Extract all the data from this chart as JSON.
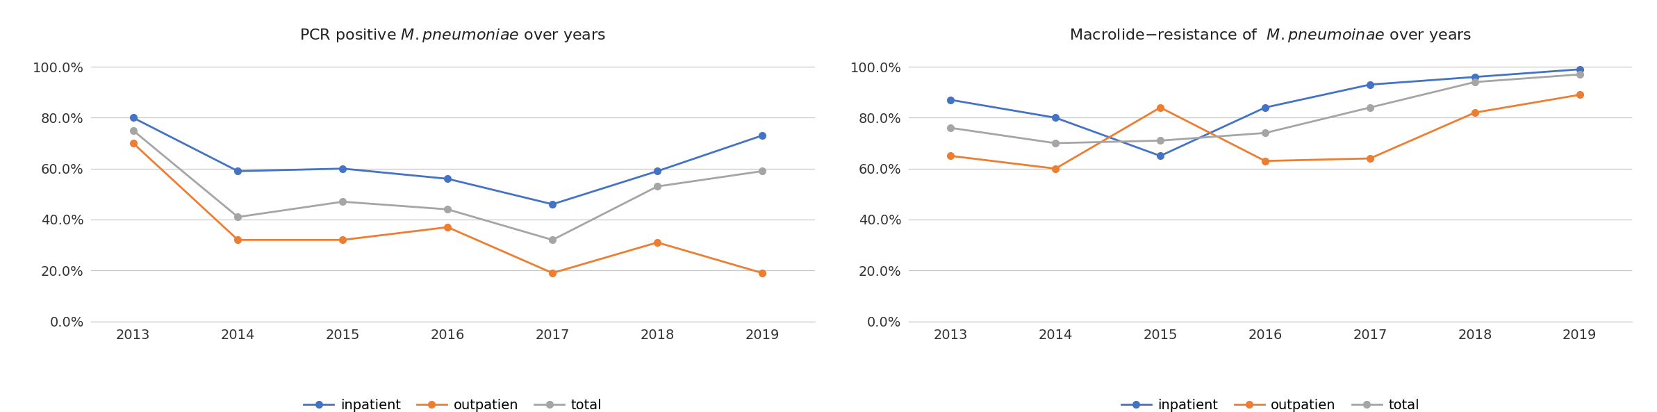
{
  "years": [
    2013,
    2014,
    2015,
    2016,
    2017,
    2018,
    2019
  ],
  "chart1": {
    "title": "PCR positive $\\it{M. pneumoniae}$ over years",
    "inpatient": [
      0.8,
      0.59,
      0.6,
      0.56,
      0.46,
      0.59,
      0.73
    ],
    "outpatient": [
      0.7,
      0.32,
      0.32,
      0.37,
      0.19,
      0.31,
      0.19
    ],
    "total": [
      0.75,
      0.41,
      0.47,
      0.44,
      0.32,
      0.53,
      0.59
    ]
  },
  "chart2": {
    "title": "Macrolide−resistance of  $\\it{M. pneumoinae}$ over years",
    "inpatient": [
      0.87,
      0.8,
      0.65,
      0.84,
      0.93,
      0.96,
      0.99
    ],
    "outpatient": [
      0.65,
      0.6,
      0.84,
      0.63,
      0.64,
      0.82,
      0.89
    ],
    "total": [
      0.76,
      0.7,
      0.71,
      0.74,
      0.84,
      0.94,
      0.97
    ]
  },
  "colors": {
    "inpatient": "#4472C4",
    "outpatient": "#ED7D31",
    "total": "#A5A5A5"
  },
  "ylim": [
    0.0,
    1.06
  ],
  "yticks": [
    0.0,
    0.2,
    0.4,
    0.6,
    0.8,
    1.0
  ],
  "marker": "o",
  "linewidth": 2.0,
  "markersize": 7,
  "background_color": "#ffffff",
  "grid_color": "#C8C8C8",
  "legend_labels": [
    "inpatient",
    "outpatien",
    "total"
  ],
  "title_fontsize": 16,
  "tick_fontsize": 14
}
